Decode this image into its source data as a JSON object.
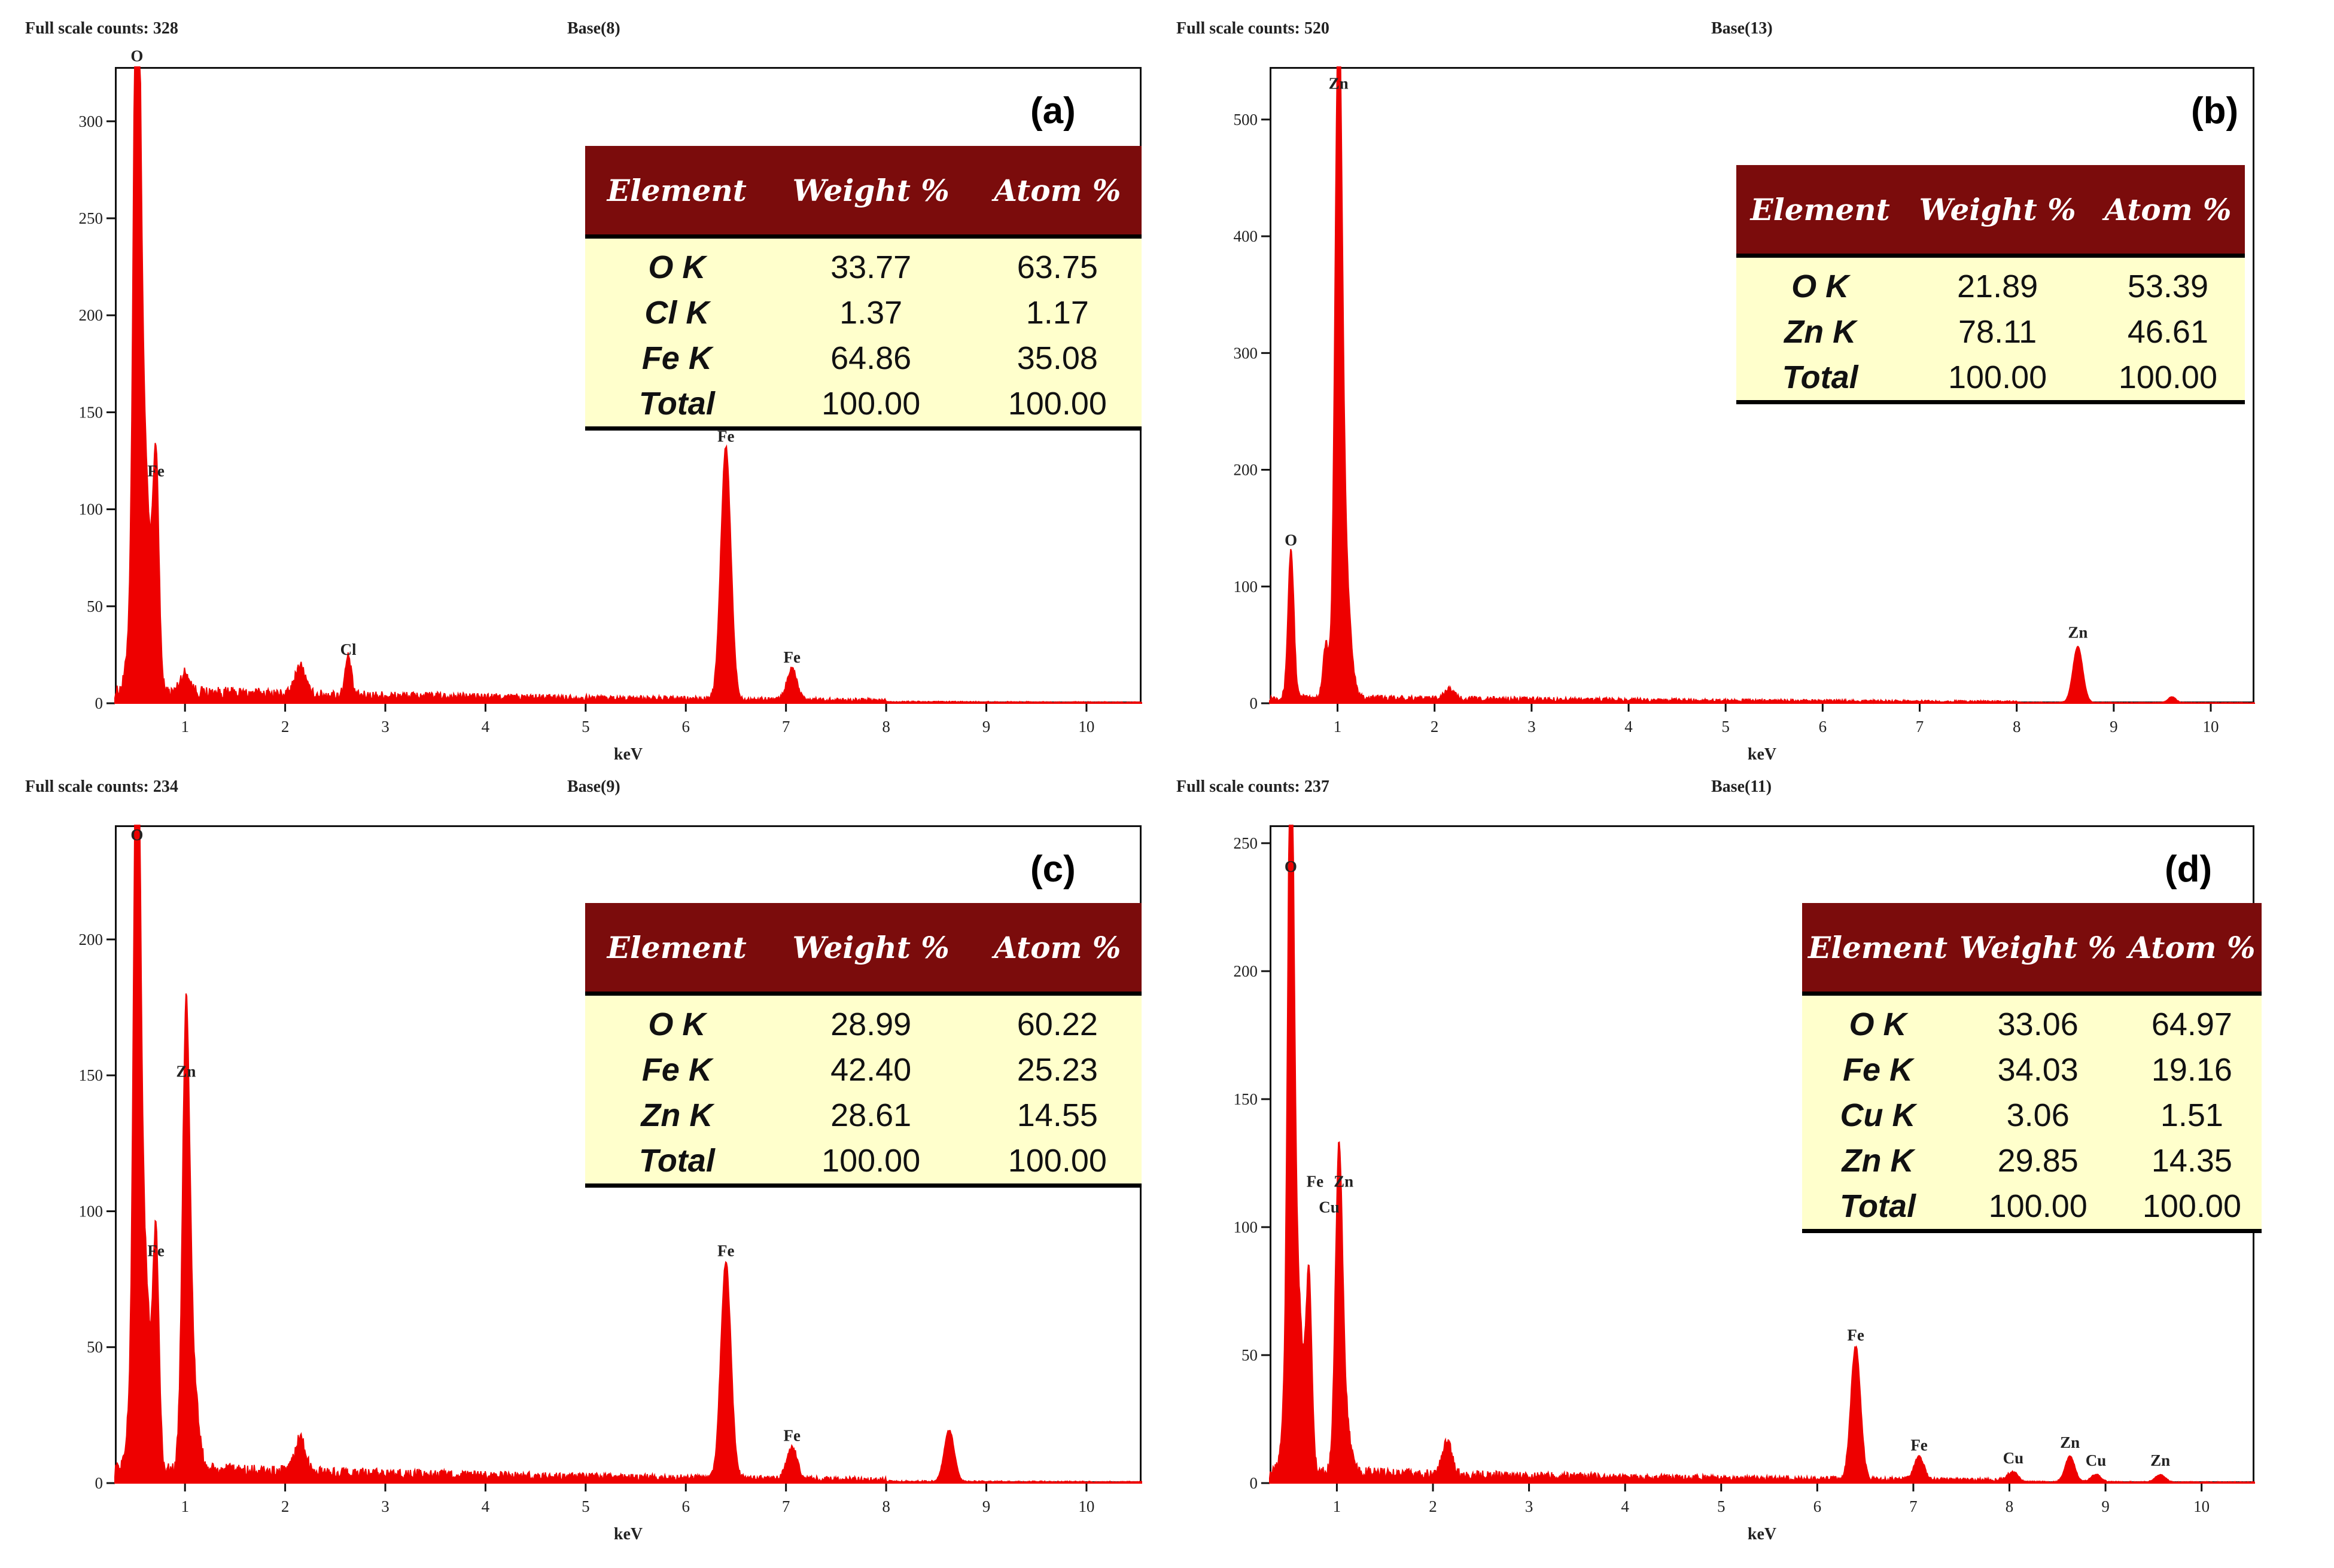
{
  "chart_data": [
    {
      "type": "line",
      "panel": "(a)",
      "full_scale_label": "Full scale counts: 328",
      "base_label": "Base(8)",
      "xlabel": "keV",
      "x_ticks": [
        "1",
        "2",
        "3",
        "4",
        "5",
        "6",
        "7",
        "8",
        "9",
        "10"
      ],
      "y_ticks": [
        "0",
        "50",
        "100",
        "150",
        "200",
        "250",
        "300"
      ],
      "xlim": [
        0.3,
        10.55
      ],
      "ylim": [
        0,
        328
      ],
      "series_color": "#ee0000",
      "noise_level": 7,
      "peaks": [
        {
          "x": 0.52,
          "y": 326,
          "width": 0.03
        },
        {
          "x": 0.56,
          "y": 160,
          "width": 0.07
        },
        {
          "x": 0.71,
          "y": 112,
          "width": 0.03
        },
        {
          "x": 1.0,
          "y": 10,
          "width": 0.05
        },
        {
          "x": 2.15,
          "y": 15,
          "width": 0.05
        },
        {
          "x": 2.63,
          "y": 20,
          "width": 0.03
        },
        {
          "x": 6.4,
          "y": 130,
          "width": 0.05
        },
        {
          "x": 7.06,
          "y": 16,
          "width": 0.05
        }
      ],
      "peak_labels": [
        {
          "text": "O",
          "x": 0.52,
          "y": 326
        },
        {
          "text": "Fe",
          "x": 0.71,
          "y": 112
        },
        {
          "text": "Cl",
          "x": 2.63,
          "y": 20
        },
        {
          "text": "Fe",
          "x": 6.4,
          "y": 130
        },
        {
          "text": "Fe",
          "x": 7.06,
          "y": 16
        }
      ],
      "table": {
        "headers": [
          "Element",
          "Weight %",
          "Atom %"
        ],
        "rows": [
          [
            "O K",
            "33.77",
            "63.75"
          ],
          [
            "Cl K",
            "1.37",
            "1.17"
          ],
          [
            "Fe K",
            "64.86",
            "35.08"
          ],
          [
            "Total",
            "100.00",
            "100.00"
          ]
        ]
      }
    },
    {
      "type": "line",
      "panel": "(b)",
      "full_scale_label": "Full scale counts: 520",
      "base_label": "Base(13)",
      "xlabel": "keV",
      "x_ticks": [
        "1",
        "2",
        "3",
        "4",
        "5",
        "6",
        "7",
        "8",
        "9",
        "10"
      ],
      "y_ticks": [
        "0",
        "100",
        "200",
        "300",
        "400",
        "500"
      ],
      "xlim": [
        0.3,
        10.45
      ],
      "ylim": [
        0,
        545
      ],
      "series_color": "#ee0000",
      "noise_level": 6,
      "peaks": [
        {
          "x": 0.52,
          "y": 127,
          "width": 0.03
        },
        {
          "x": 0.88,
          "y": 45,
          "width": 0.03
        },
        {
          "x": 1.01,
          "y": 518,
          "width": 0.035
        },
        {
          "x": 1.06,
          "y": 130,
          "width": 0.06
        },
        {
          "x": 2.15,
          "y": 8,
          "width": 0.05
        },
        {
          "x": 8.63,
          "y": 48,
          "width": 0.05
        },
        {
          "x": 9.6,
          "y": 5,
          "width": 0.04
        }
      ],
      "peak_labels": [
        {
          "text": "O",
          "x": 0.52,
          "y": 127
        },
        {
          "text": "Zn",
          "x": 1.01,
          "y": 518
        },
        {
          "text": "Zn",
          "x": 8.63,
          "y": 48
        }
      ],
      "table": {
        "headers": [
          "Element",
          "Weight %",
          "Atom %"
        ],
        "rows": [
          [
            "O K",
            "21.89",
            "53.39"
          ],
          [
            "Zn K",
            "78.11",
            "46.61"
          ],
          [
            "Total",
            "100.00",
            "100.00"
          ]
        ]
      }
    },
    {
      "type": "line",
      "panel": "(c)",
      "full_scale_label": "Full scale counts: 234",
      "base_label": "Base(9)",
      "xlabel": "keV",
      "x_ticks": [
        "1",
        "2",
        "3",
        "4",
        "5",
        "6",
        "7",
        "8",
        "9",
        "10"
      ],
      "y_ticks": [
        "0",
        "50",
        "100",
        "150",
        "200"
      ],
      "xlim": [
        0.3,
        10.55
      ],
      "ylim": [
        0,
        242
      ],
      "series_color": "#ee0000",
      "noise_level": 6,
      "peaks": [
        {
          "x": 0.52,
          "y": 233,
          "width": 0.03
        },
        {
          "x": 0.56,
          "y": 100,
          "width": 0.07
        },
        {
          "x": 0.71,
          "y": 80,
          "width": 0.03
        },
        {
          "x": 1.01,
          "y": 146,
          "width": 0.035
        },
        {
          "x": 1.06,
          "y": 40,
          "width": 0.06
        },
        {
          "x": 2.15,
          "y": 13,
          "width": 0.05
        },
        {
          "x": 6.4,
          "y": 80,
          "width": 0.05
        },
        {
          "x": 7.06,
          "y": 12,
          "width": 0.05
        },
        {
          "x": 8.63,
          "y": 19,
          "width": 0.05
        }
      ],
      "peak_labels": [
        {
          "text": "O",
          "x": 0.52,
          "y": 233
        },
        {
          "text": "Fe",
          "x": 0.71,
          "y": 80
        },
        {
          "text": "Zn",
          "x": 1.01,
          "y": 146
        },
        {
          "text": "Fe",
          "x": 6.4,
          "y": 80
        },
        {
          "text": "Fe",
          "x": 7.06,
          "y": 12
        }
      ],
      "table": {
        "headers": [
          "Element",
          "Weight %",
          "Atom %"
        ],
        "rows": [
          [
            "O K",
            "28.99",
            "60.22"
          ],
          [
            "Fe K",
            "42.40",
            "25.23"
          ],
          [
            "Zn K",
            "28.61",
            "14.55"
          ],
          [
            "Total",
            "100.00",
            "100.00"
          ]
        ]
      }
    },
    {
      "type": "line",
      "panel": "(d)",
      "full_scale_label": "Full scale counts: 237",
      "base_label": "Base(11)",
      "xlabel": "keV",
      "x_ticks": [
        "1",
        "2",
        "3",
        "4",
        "5",
        "6",
        "7",
        "8",
        "9",
        "10"
      ],
      "y_ticks": [
        "0",
        "50",
        "100",
        "150",
        "200",
        "250"
      ],
      "xlim": [
        0.3,
        10.55
      ],
      "ylim": [
        0,
        257
      ],
      "series_color": "#ee0000",
      "noise_level": 5,
      "peaks": [
        {
          "x": 0.52,
          "y": 235,
          "width": 0.03
        },
        {
          "x": 0.56,
          "y": 90,
          "width": 0.07
        },
        {
          "x": 0.71,
          "y": 70,
          "width": 0.03
        },
        {
          "x": 1.02,
          "y": 105,
          "width": 0.035
        },
        {
          "x": 1.06,
          "y": 30,
          "width": 0.06
        },
        {
          "x": 2.15,
          "y": 13,
          "width": 0.05
        },
        {
          "x": 6.4,
          "y": 52,
          "width": 0.05
        },
        {
          "x": 7.06,
          "y": 9,
          "width": 0.05
        },
        {
          "x": 8.04,
          "y": 4,
          "width": 0.05
        },
        {
          "x": 8.63,
          "y": 10,
          "width": 0.05
        },
        {
          "x": 8.9,
          "y": 3,
          "width": 0.05
        },
        {
          "x": 9.57,
          "y": 3,
          "width": 0.05
        }
      ],
      "peak_labels": [
        {
          "text": "O",
          "x": 0.52,
          "y": 235
        },
        {
          "text": "Fe",
          "x": 0.71,
          "y": 112,
          "dx": 10
        },
        {
          "text": "Zn",
          "x": 1.02,
          "y": 112,
          "dx": 8
        },
        {
          "text": "Cu",
          "x": 0.92,
          "y": 102,
          "dx": 0
        },
        {
          "text": "Fe",
          "x": 6.4,
          "y": 52
        },
        {
          "text": "Fe",
          "x": 7.06,
          "y": 9
        },
        {
          "text": "Cu",
          "x": 8.04,
          "y": 4
        },
        {
          "text": "Zn",
          "x": 8.63,
          "y": 10
        },
        {
          "text": "Cu",
          "x": 8.9,
          "y": 3
        },
        {
          "text": "Zn",
          "x": 9.57,
          "y": 3
        }
      ],
      "table": {
        "headers": [
          "Element",
          "Weight %",
          "Atom %"
        ],
        "rows": [
          [
            "O K",
            "33.06",
            "64.97"
          ],
          [
            "Fe K",
            "34.03",
            "19.16"
          ],
          [
            "Cu K",
            "3.06",
            "1.51"
          ],
          [
            "Zn K",
            "29.85",
            "14.35"
          ],
          [
            "Total",
            "100.00",
            "100.00"
          ]
        ]
      }
    }
  ]
}
